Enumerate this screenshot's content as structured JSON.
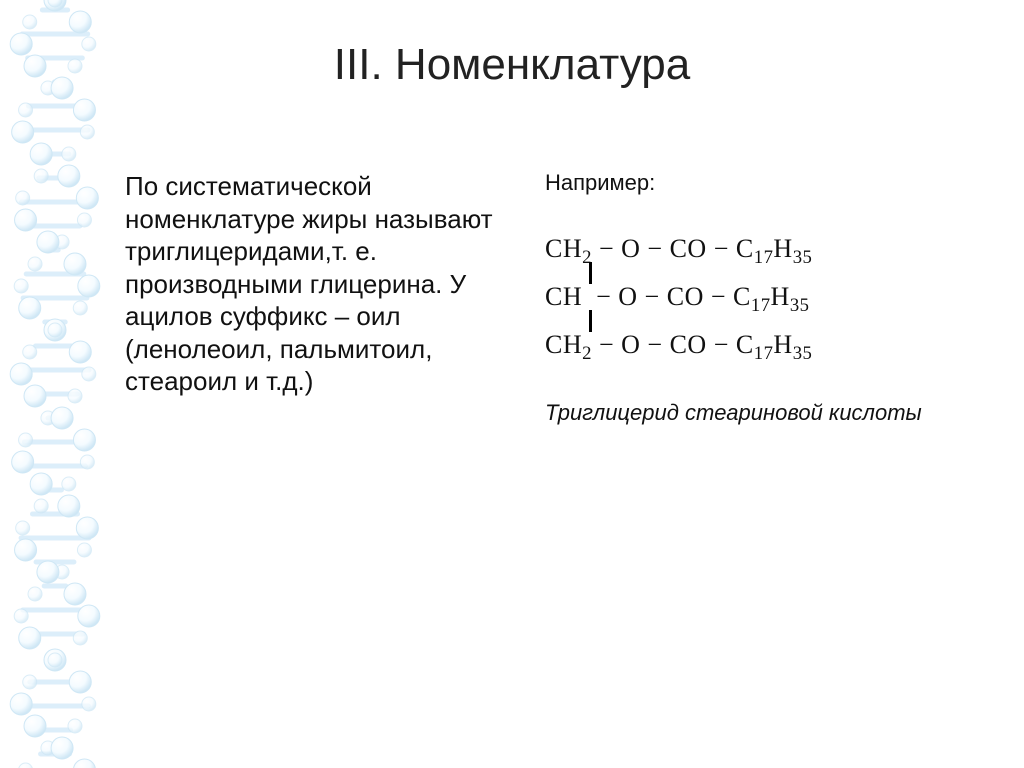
{
  "title": "III. Номенклатура",
  "left_text": "По систематической номенклатуре жиры называют триглицеридами,т. е. производными глицерина. У ацилов суффикс – оил (ленолеоил, пальмитоил, стеароил и т.д.)",
  "example_label": "Например:",
  "formula": {
    "line1_html": "CH<sub>2</sub> − O − CO − C<sub>17</sub>H<sub>35</sub>",
    "line2_html": "CH &nbsp;− O − CO − C<sub>17</sub>H<sub>35</sub>",
    "line3_html": "CH<sub>2</sub> − O − CO − C<sub>17</sub>H<sub>35</sub>"
  },
  "caption": "Триглицерид стеариновой кислоты",
  "dna": {
    "bg_color": "#ffffff",
    "node_fill": "#f4fbff",
    "node_shine": "#ffffff",
    "stroke": "#cfe7f5",
    "bar": "#dceefa"
  }
}
